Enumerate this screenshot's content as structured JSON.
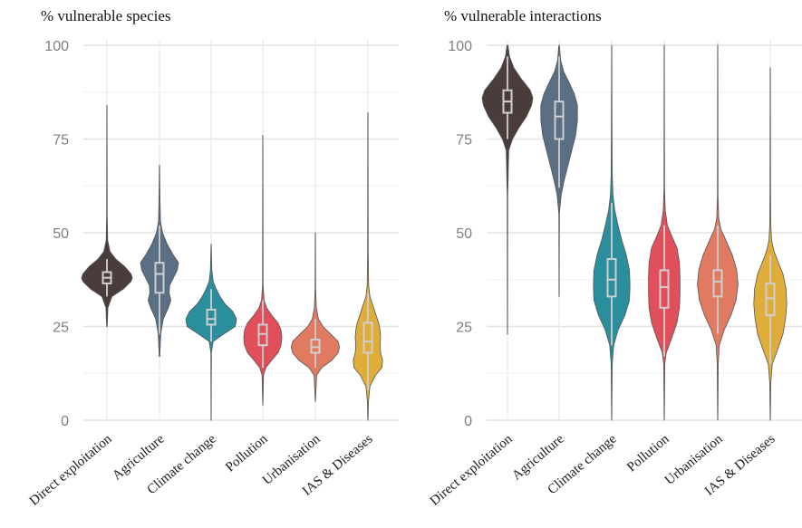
{
  "chart_data": [
    {
      "type": "violin",
      "title": "% vulnerable species",
      "ylim": [
        0,
        100
      ],
      "yticks": [
        0,
        25,
        50,
        75,
        100
      ],
      "grid": true,
      "categories": [
        "Direct exploitation",
        "Agriculture",
        "Climate change",
        "Pollution",
        "Urbanisation",
        "IAS & Diseases"
      ],
      "series": [
        {
          "category": "Direct exploitation",
          "color": "#4a3c3a",
          "min": 25,
          "max": 84,
          "q1": 36.5,
          "median": 38,
          "q3": 39.5,
          "whisker_low": 33,
          "whisker_high": 43,
          "density": [
            [
              25,
              0.01
            ],
            [
              30,
              0.04
            ],
            [
              33,
              0.2
            ],
            [
              35,
              0.65
            ],
            [
              37,
              0.95
            ],
            [
              38,
              1.0
            ],
            [
              39,
              0.95
            ],
            [
              41,
              0.7
            ],
            [
              43,
              0.35
            ],
            [
              45,
              0.12
            ],
            [
              48,
              0.03
            ],
            [
              55,
              0.01
            ],
            [
              84,
              0.005
            ]
          ]
        },
        {
          "category": "Agriculture",
          "color": "#5a6e84",
          "min": 17,
          "max": 68,
          "q1": 34,
          "median": 39,
          "q3": 42,
          "whisker_low": 23,
          "whisker_high": 52,
          "density": [
            [
              17,
              0.01
            ],
            [
              23,
              0.05
            ],
            [
              27,
              0.15
            ],
            [
              30,
              0.35
            ],
            [
              32,
              0.45
            ],
            [
              34,
              0.38
            ],
            [
              36,
              0.4
            ],
            [
              38,
              0.55
            ],
            [
              40,
              0.7
            ],
            [
              42,
              0.75
            ],
            [
              44,
              0.55
            ],
            [
              47,
              0.3
            ],
            [
              50,
              0.12
            ],
            [
              53,
              0.04
            ],
            [
              58,
              0.02
            ],
            [
              68,
              0.005
            ]
          ]
        },
        {
          "category": "Climate change",
          "color": "#2b8e9c",
          "min": 0,
          "max": 47,
          "q1": 25.5,
          "median": 27,
          "q3": 29.5,
          "whisker_low": 21,
          "whisker_high": 35,
          "density": [
            [
              0,
              0.005
            ],
            [
              18,
              0.01
            ],
            [
              21,
              0.08
            ],
            [
              23,
              0.5
            ],
            [
              25,
              0.95
            ],
            [
              27,
              1.0
            ],
            [
              29,
              0.85
            ],
            [
              31,
              0.55
            ],
            [
              33,
              0.35
            ],
            [
              35,
              0.2
            ],
            [
              37,
              0.08
            ],
            [
              40,
              0.03
            ],
            [
              47,
              0.005
            ]
          ]
        },
        {
          "category": "Pollution",
          "color": "#e04f5a",
          "min": 4,
          "max": 76,
          "q1": 20,
          "median": 23,
          "q3": 25.5,
          "whisker_low": 14,
          "whisker_high": 32,
          "density": [
            [
              4,
              0.005
            ],
            [
              12,
              0.03
            ],
            [
              14,
              0.12
            ],
            [
              16,
              0.35
            ],
            [
              18,
              0.6
            ],
            [
              20,
              0.72
            ],
            [
              22,
              0.75
            ],
            [
              24,
              0.72
            ],
            [
              26,
              0.6
            ],
            [
              28,
              0.35
            ],
            [
              30,
              0.15
            ],
            [
              32,
              0.05
            ],
            [
              36,
              0.01
            ],
            [
              76,
              0.005
            ]
          ]
        },
        {
          "category": "Urbanisation",
          "color": "#e07b62",
          "min": 5,
          "max": 50,
          "q1": 18,
          "median": 19.5,
          "q3": 21.5,
          "whisker_low": 14,
          "whisker_high": 27,
          "density": [
            [
              5,
              0.005
            ],
            [
              12,
              0.05
            ],
            [
              14,
              0.25
            ],
            [
              16,
              0.65
            ],
            [
              18,
              0.9
            ],
            [
              19.5,
              0.95
            ],
            [
              21,
              0.9
            ],
            [
              23,
              0.6
            ],
            [
              25,
              0.3
            ],
            [
              27,
              0.12
            ],
            [
              30,
              0.04
            ],
            [
              35,
              0.01
            ],
            [
              50,
              0.005
            ]
          ]
        },
        {
          "category": "IAS & Diseases",
          "color": "#dfae3a",
          "min": 0,
          "max": 82,
          "q1": 18,
          "median": 21,
          "q3": 26,
          "whisker_low": 8,
          "whisker_high": 34,
          "density": [
            [
              0,
              0.005
            ],
            [
              5,
              0.02
            ],
            [
              9,
              0.08
            ],
            [
              12,
              0.3
            ],
            [
              14,
              0.55
            ],
            [
              16,
              0.58
            ],
            [
              18,
              0.5
            ],
            [
              20,
              0.48
            ],
            [
              22,
              0.5
            ],
            [
              24,
              0.48
            ],
            [
              26,
              0.42
            ],
            [
              28,
              0.32
            ],
            [
              31,
              0.18
            ],
            [
              33,
              0.08
            ],
            [
              36,
              0.03
            ],
            [
              45,
              0.01
            ],
            [
              82,
              0.005
            ]
          ]
        }
      ]
    },
    {
      "type": "violin",
      "title": "% vulnerable interactions",
      "ylim": [
        0,
        100
      ],
      "yticks": [
        0,
        25,
        50,
        75,
        100
      ],
      "grid": true,
      "categories": [
        "Direct exploitation",
        "Agriculture",
        "Climate change",
        "Pollution",
        "Urbanisation",
        "IAS & Diseases"
      ],
      "series": [
        {
          "category": "Direct exploitation",
          "color": "#4a3c3a",
          "min": 23,
          "max": 100,
          "q1": 82,
          "median": 85,
          "q3": 88,
          "whisker_low": 75,
          "whisker_high": 97,
          "density": [
            [
              23,
              0.005
            ],
            [
              60,
              0.01
            ],
            [
              72,
              0.05
            ],
            [
              75,
              0.2
            ],
            [
              78,
              0.45
            ],
            [
              81,
              0.75
            ],
            [
              84,
              0.95
            ],
            [
              86,
              1.0
            ],
            [
              88,
              0.9
            ],
            [
              91,
              0.55
            ],
            [
              94,
              0.25
            ],
            [
              97,
              0.08
            ],
            [
              100,
              0.02
            ]
          ]
        },
        {
          "category": "Agriculture",
          "color": "#5a6e84",
          "min": 33,
          "max": 100,
          "q1": 75,
          "median": 81,
          "q3": 85,
          "whisker_low": 62,
          "whisker_high": 97,
          "density": [
            [
              33,
              0.005
            ],
            [
              55,
              0.01
            ],
            [
              60,
              0.08
            ],
            [
              64,
              0.2
            ],
            [
              68,
              0.35
            ],
            [
              72,
              0.5
            ],
            [
              76,
              0.65
            ],
            [
              80,
              0.72
            ],
            [
              84,
              0.72
            ],
            [
              87,
              0.6
            ],
            [
              90,
              0.4
            ],
            [
              93,
              0.18
            ],
            [
              96,
              0.06
            ],
            [
              100,
              0.01
            ]
          ]
        },
        {
          "category": "Climate change",
          "color": "#2b8e9c",
          "min": 0,
          "max": 100,
          "q1": 33,
          "median": 37.5,
          "q3": 43,
          "whisker_low": 20,
          "whisker_high": 58,
          "density": [
            [
              0,
              0.005
            ],
            [
              15,
              0.02
            ],
            [
              20,
              0.08
            ],
            [
              24,
              0.25
            ],
            [
              28,
              0.52
            ],
            [
              32,
              0.7
            ],
            [
              36,
              0.72
            ],
            [
              40,
              0.7
            ],
            [
              44,
              0.58
            ],
            [
              48,
              0.4
            ],
            [
              52,
              0.25
            ],
            [
              56,
              0.12
            ],
            [
              60,
              0.05
            ],
            [
              66,
              0.02
            ],
            [
              80,
              0.01
            ],
            [
              100,
              0.003
            ]
          ]
        },
        {
          "category": "Pollution",
          "color": "#e04f5a",
          "min": 0,
          "max": 100,
          "q1": 30,
          "median": 35.5,
          "q3": 40,
          "whisker_low": 17,
          "whisker_high": 52,
          "density": [
            [
              0,
              0.005
            ],
            [
              15,
              0.02
            ],
            [
              18,
              0.08
            ],
            [
              22,
              0.3
            ],
            [
              26,
              0.5
            ],
            [
              30,
              0.6
            ],
            [
              34,
              0.62
            ],
            [
              38,
              0.62
            ],
            [
              42,
              0.6
            ],
            [
              46,
              0.5
            ],
            [
              49,
              0.3
            ],
            [
              52,
              0.12
            ],
            [
              56,
              0.04
            ],
            [
              62,
              0.01
            ],
            [
              100,
              0.003
            ]
          ]
        },
        {
          "category": "Urbanisation",
          "color": "#e07b62",
          "min": 0,
          "max": 100,
          "q1": 33,
          "median": 37,
          "q3": 40,
          "whisker_low": 23,
          "whisker_high": 52,
          "density": [
            [
              0,
              0.005
            ],
            [
              15,
              0.02
            ],
            [
              20,
              0.06
            ],
            [
              24,
              0.25
            ],
            [
              28,
              0.52
            ],
            [
              32,
              0.72
            ],
            [
              36,
              0.8
            ],
            [
              40,
              0.75
            ],
            [
              44,
              0.58
            ],
            [
              48,
              0.32
            ],
            [
              51,
              0.12
            ],
            [
              54,
              0.04
            ],
            [
              60,
              0.01
            ],
            [
              100,
              0.003
            ]
          ]
        },
        {
          "category": "IAS & Diseases",
          "color": "#dfae3a",
          "min": 0,
          "max": 94,
          "q1": 28,
          "median": 32.5,
          "q3": 36.5,
          "whisker_low": 15,
          "whisker_high": 44,
          "density": [
            [
              0,
              0.005
            ],
            [
              10,
              0.02
            ],
            [
              15,
              0.08
            ],
            [
              19,
              0.3
            ],
            [
              23,
              0.5
            ],
            [
              27,
              0.6
            ],
            [
              31,
              0.65
            ],
            [
              35,
              0.62
            ],
            [
              39,
              0.5
            ],
            [
              42,
              0.32
            ],
            [
              45,
              0.15
            ],
            [
              48,
              0.05
            ],
            [
              52,
              0.02
            ],
            [
              60,
              0.01
            ],
            [
              94,
              0.003
            ]
          ]
        }
      ]
    }
  ]
}
